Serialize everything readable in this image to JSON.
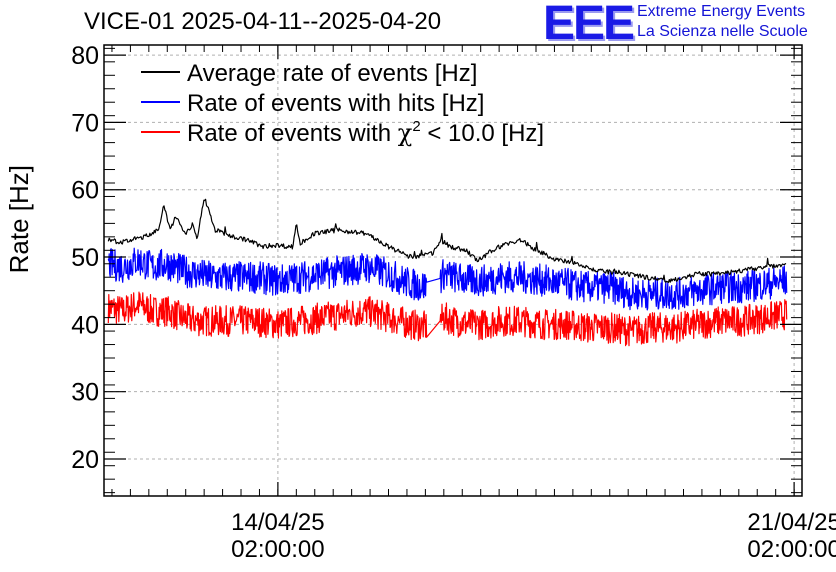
{
  "header": {
    "title": "VICE-01 2025-04-11--2025-04-20",
    "logo_letters": "EEE",
    "logo_line1": "Extreme Energy Events",
    "logo_line2": "La Scienza nelle Scuole"
  },
  "colors": {
    "average": "#000000",
    "hits": "#0000ff",
    "chi2": "#ff0000",
    "logo": "#1a1ae6"
  },
  "chart_data": {
    "type": "line",
    "title": "VICE-01 2025-04-11--2025-04-20",
    "ylabel": "Rate [Hz]",
    "xlabel": "",
    "ylim": [
      14.5,
      81.5
    ],
    "yticks": [
      20,
      30,
      40,
      50,
      60,
      70,
      80
    ],
    "xlim_days": [
      -2.358,
      7.107
    ],
    "xticks": [
      {
        "day": 0,
        "date": "14/04/25",
        "time": "02:00:00"
      },
      {
        "day": 7,
        "date": "21/04/25",
        "time": "02:00:00"
      }
    ],
    "grid": true,
    "legend_position": "top-left",
    "legend": [
      {
        "label": "Average rate of events [Hz]",
        "series": "average"
      },
      {
        "label": "Rate of events with hits [Hz]",
        "series": "hits"
      },
      {
        "label_prefix": "Rate of events with ",
        "chi": "χ",
        "sup": "2",
        "label_suffix": " < 10.0 [Hz]",
        "series": "chi2"
      }
    ],
    "series": [
      {
        "name": "average",
        "x": [
          -2.3,
          -2.1,
          -1.9,
          -1.75,
          -1.6,
          -1.55,
          -1.45,
          -1.4,
          -1.3,
          -1.25,
          -1.15,
          -1.1,
          -1.05,
          -1.0,
          -0.85,
          -0.6,
          -0.4,
          -0.2,
          -0.05,
          0.2,
          0.25,
          0.3,
          0.5,
          0.8,
          1.2,
          1.5,
          1.8,
          2.1,
          2.2,
          2.35,
          2.55,
          2.7,
          2.8,
          2.9,
          3.1,
          3.3,
          3.5,
          3.8,
          4.1,
          4.3,
          4.7,
          5.0,
          5.3,
          5.7,
          6.0,
          6.3,
          6.6,
          6.9
        ],
        "values": [
          52.5,
          52.2,
          52.8,
          53.2,
          54.5,
          57.5,
          54.0,
          56.0,
          54.5,
          53.5,
          55.0,
          52.5,
          55.5,
          59.0,
          54.0,
          53.0,
          52.5,
          51.5,
          51.8,
          51.5,
          55.0,
          52.0,
          53.5,
          54.0,
          53.5,
          51.5,
          50.0,
          50.5,
          52.5,
          51.5,
          51.0,
          49.5,
          50.0,
          51.0,
          52.0,
          52.5,
          51.0,
          49.5,
          49.0,
          48.0,
          47.5,
          47.0,
          46.5,
          47.5,
          47.5,
          48.0,
          48.5,
          49.0
        ]
      },
      {
        "name": "hits",
        "x": [
          -2.3,
          -2.1,
          -1.9,
          -1.7,
          -1.5,
          -1.3,
          -1.1,
          -0.9,
          -0.6,
          -0.3,
          0.0,
          0.3,
          0.6,
          0.9,
          1.2,
          1.5,
          1.8,
          2.1,
          2.25,
          2.4,
          2.6,
          2.8,
          3.0,
          3.3,
          3.6,
          3.9,
          4.2,
          4.5,
          4.8,
          5.1,
          5.4,
          5.7,
          6.0,
          6.3,
          6.6,
          6.9
        ],
        "values": [
          49.0,
          48.5,
          49.5,
          48.5,
          49.0,
          48.0,
          47.5,
          47.0,
          47.0,
          47.0,
          46.5,
          47.0,
          47.5,
          48.0,
          48.5,
          47.5,
          46.0,
          45.5,
          47.5,
          47.0,
          46.5,
          46.5,
          47.0,
          47.0,
          46.5,
          46.0,
          45.5,
          45.5,
          44.5,
          44.5,
          44.5,
          45.0,
          45.5,
          45.5,
          46.0,
          46.5
        ]
      },
      {
        "name": "chi2",
        "x": [
          -2.3,
          -2.1,
          -1.9,
          -1.7,
          -1.5,
          -1.3,
          -1.1,
          -0.9,
          -0.6,
          -0.3,
          0.0,
          0.3,
          0.6,
          0.9,
          1.2,
          1.5,
          1.8,
          2.1,
          2.25,
          2.4,
          2.6,
          2.8,
          3.0,
          3.3,
          3.6,
          3.9,
          4.2,
          4.5,
          4.8,
          5.1,
          5.4,
          5.7,
          6.0,
          6.3,
          6.6,
          6.9
        ],
        "values": [
          42.5,
          42.0,
          43.0,
          42.0,
          42.0,
          41.0,
          40.5,
          40.5,
          40.5,
          40.5,
          40.0,
          40.5,
          41.0,
          41.5,
          42.0,
          41.0,
          40.0,
          39.5,
          41.0,
          40.5,
          40.0,
          40.0,
          40.5,
          40.5,
          40.0,
          40.0,
          39.5,
          39.5,
          39.0,
          39.5,
          39.5,
          40.0,
          40.5,
          40.5,
          41.0,
          41.5
        ]
      }
    ]
  }
}
